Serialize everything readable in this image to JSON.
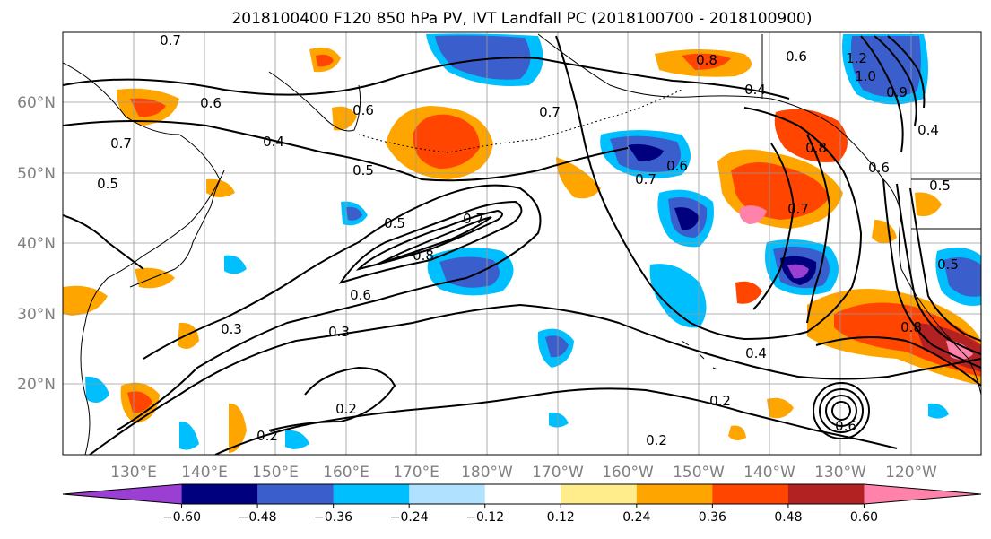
{
  "title": "2018100400 F120 850 hPa PV, IVT Landfall PC (2018100700 - 2018100900)",
  "lat_labels": [
    "20°N",
    "30°N",
    "40°N",
    "50°N",
    "60°N"
  ],
  "lon_labels": [
    "130°E",
    "140°E",
    "150°E",
    "160°E",
    "170°E",
    "180°W",
    "170°W",
    "160°W",
    "150°W",
    "140°W",
    "130°W",
    "120°W"
  ],
  "colorbar": {
    "colors": [
      "#9a3fd1",
      "#00007f",
      "#3a5fcd",
      "#00bfff",
      "#b0e2ff",
      "#ffffff",
      "#ffec8b",
      "#ffa500",
      "#ff4500",
      "#b22222",
      "#ff82ab"
    ],
    "ticks": [
      "−0.60",
      "−0.48",
      "−0.36",
      "−0.24",
      "−0.12",
      "0.12",
      "0.24",
      "0.36",
      "0.48",
      "0.60"
    ],
    "levels": [
      -0.6,
      -0.48,
      -0.36,
      -0.24,
      -0.12,
      0.12,
      0.24,
      0.36,
      0.48,
      0.6
    ]
  },
  "contour_labels": [
    "0.6",
    "0.4",
    "0.5",
    "0.7",
    "0.8",
    "0.8",
    "0.6",
    "0.5",
    "0.7",
    "0.3",
    "0.3",
    "0.2",
    "0.2",
    "0.5",
    "0.6",
    "0.4",
    "0.7",
    "0.6",
    "0.7",
    "0.7",
    "0.4",
    "0.8",
    "0.2",
    "0.2",
    "0.6",
    "0.6",
    "0.4",
    "1.0",
    "1.2",
    "0.9",
    "0.5",
    "0.5",
    "0.6",
    "0.7",
    "0.8"
  ],
  "map_extent": {
    "lon_min": 120,
    "lon_max": 250,
    "lat_min": 10,
    "lat_max": 70
  }
}
